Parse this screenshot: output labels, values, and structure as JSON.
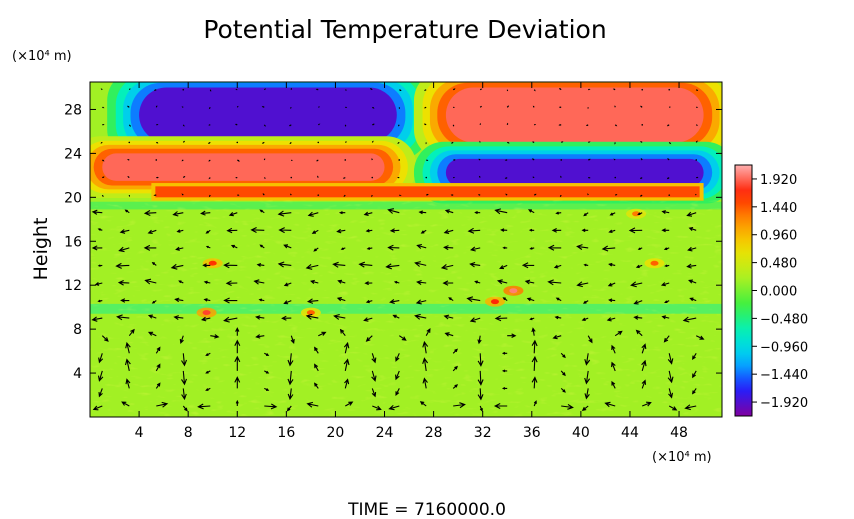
{
  "chart_data": {
    "type": "heatmap",
    "title": "Potential Temperature Deviation",
    "ylabel": "Height",
    "x_unit_label": "(×10⁴ m)",
    "y_unit_label": "(×10⁴ m)",
    "xlim": [
      0,
      51.5
    ],
    "ylim": [
      0,
      30.5
    ],
    "x_ticks": [
      4,
      8,
      12,
      16,
      20,
      24,
      28,
      32,
      36,
      40,
      44,
      48
    ],
    "y_ticks": [
      4,
      8,
      12,
      16,
      20,
      24,
      28
    ],
    "colorbar": {
      "min": -2.16,
      "max": 2.16,
      "ticks": [
        "1.920",
        "1.440",
        "0.960",
        "0.480",
        "0.000",
        "−0.480",
        "−0.960",
        "−1.440",
        "−1.920"
      ],
      "tick_values": [
        1.92,
        1.44,
        0.96,
        0.48,
        0.0,
        -0.48,
        -0.96,
        -1.44,
        -1.92
      ]
    },
    "overlay": "wind vector arrows",
    "features": [
      {
        "label": "upper-left negative cell",
        "x": [
          4,
          25
        ],
        "y": [
          25,
          30
        ],
        "value": -1.92
      },
      {
        "label": "upper-right positive cell",
        "x": [
          29,
          50
        ],
        "y": [
          25,
          30
        ],
        "value": 1.92
      },
      {
        "label": "left positive band",
        "x": [
          1,
          24
        ],
        "y": [
          21.5,
          24
        ],
        "value": 1.92
      },
      {
        "label": "right negative band",
        "x": [
          29,
          50
        ],
        "y": [
          21,
          23.5
        ],
        "value": -1.92
      },
      {
        "label": "thin positive band",
        "x": [
          5,
          50
        ],
        "y": [
          20,
          21
        ],
        "value": 1.5
      },
      {
        "label": "lower noisy layer",
        "x": [
          0,
          51.5
        ],
        "y": [
          0,
          19
        ],
        "value": 0.0
      }
    ]
  },
  "footer": "TIME  =  7160000.0",
  "colors": {
    "palette": [
      "#8000a0",
      "#2020ff",
      "#00c0ff",
      "#00f0c0",
      "#40f040",
      "#b0f020",
      "#f0e000",
      "#ff9000",
      "#ff2000",
      "#ffb0b0"
    ],
    "background": "#ffffff",
    "axes": "#000000"
  }
}
